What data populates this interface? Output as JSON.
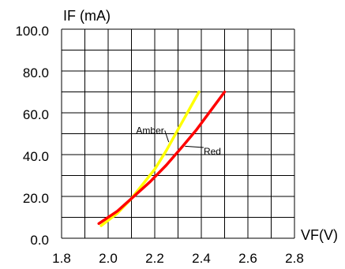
{
  "chart_data": {
    "type": "line",
    "ylabel": "IF (mA)",
    "xlabel": "VF(V)",
    "xlim": [
      1.8,
      2.8
    ],
    "ylim": [
      0,
      100
    ],
    "x_ticks": [
      "1.8",
      "2.0",
      "2.2",
      "2.4",
      "2.6",
      "2.8"
    ],
    "y_ticks": [
      "0.0",
      "20.0",
      "40.0",
      "60.0",
      "80.0",
      "100.0"
    ],
    "grid": true,
    "series": [
      {
        "name": "Amber",
        "color": "#ffff00",
        "x": [
          1.97,
          2.04,
          2.1,
          2.15,
          2.2,
          2.25,
          2.3,
          2.35,
          2.39
        ],
        "y": [
          6,
          12,
          19,
          26,
          33,
          42,
          52,
          62,
          70
        ]
      },
      {
        "name": "Red",
        "color": "#ff0000",
        "x": [
          1.96,
          2.04,
          2.1,
          2.18,
          2.25,
          2.32,
          2.38,
          2.44,
          2.5
        ],
        "y": [
          7,
          13,
          19,
          27,
          35,
          44,
          52,
          61,
          70
        ]
      }
    ],
    "annotations": [
      {
        "text": "Amber",
        "series": "Amber",
        "label_x": 2.12,
        "label_y": 50,
        "point_x": 2.26,
        "point_y": 46
      },
      {
        "text": "Red",
        "series": "Red",
        "label_x": 2.41,
        "label_y": 40,
        "point_x": 2.33,
        "point_y": 44
      }
    ]
  }
}
